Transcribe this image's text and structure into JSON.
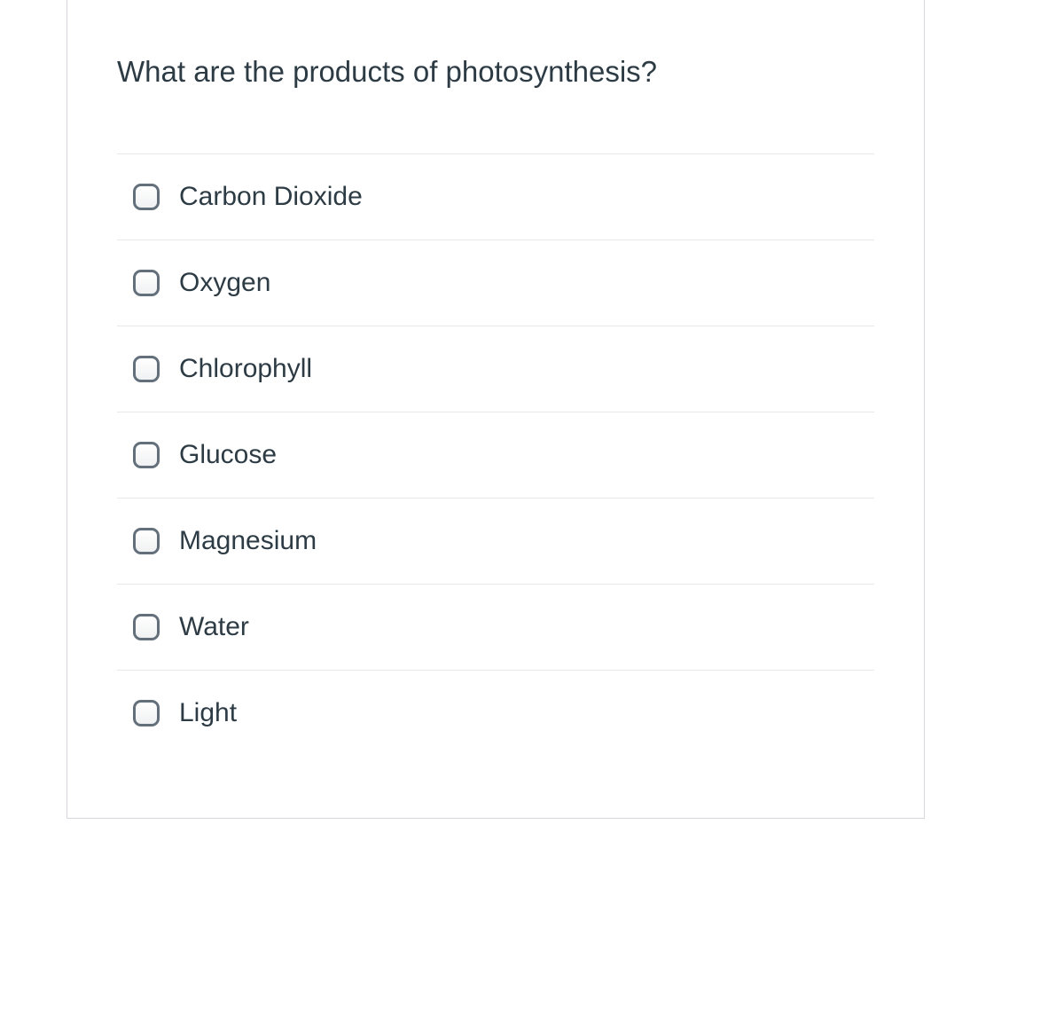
{
  "question": {
    "text": "What are the products of photosynthesis?",
    "options": [
      {
        "label": "Carbon Dioxide",
        "checked": false
      },
      {
        "label": "Oxygen",
        "checked": false
      },
      {
        "label": "Chlorophyll",
        "checked": false
      },
      {
        "label": "Glucose",
        "checked": false
      },
      {
        "label": "Magnesium",
        "checked": false
      },
      {
        "label": "Water",
        "checked": false
      },
      {
        "label": "Light",
        "checked": false
      }
    ]
  },
  "colors": {
    "text_primary": "#2d3b45",
    "border": "#d5d8dc",
    "divider": "#e6e8ea",
    "checkbox_border": "#63707b",
    "background": "#ffffff"
  },
  "typography": {
    "question_fontsize": 33,
    "option_fontsize": 30,
    "font_family": "-apple-system, Helvetica Neue, Arial"
  }
}
